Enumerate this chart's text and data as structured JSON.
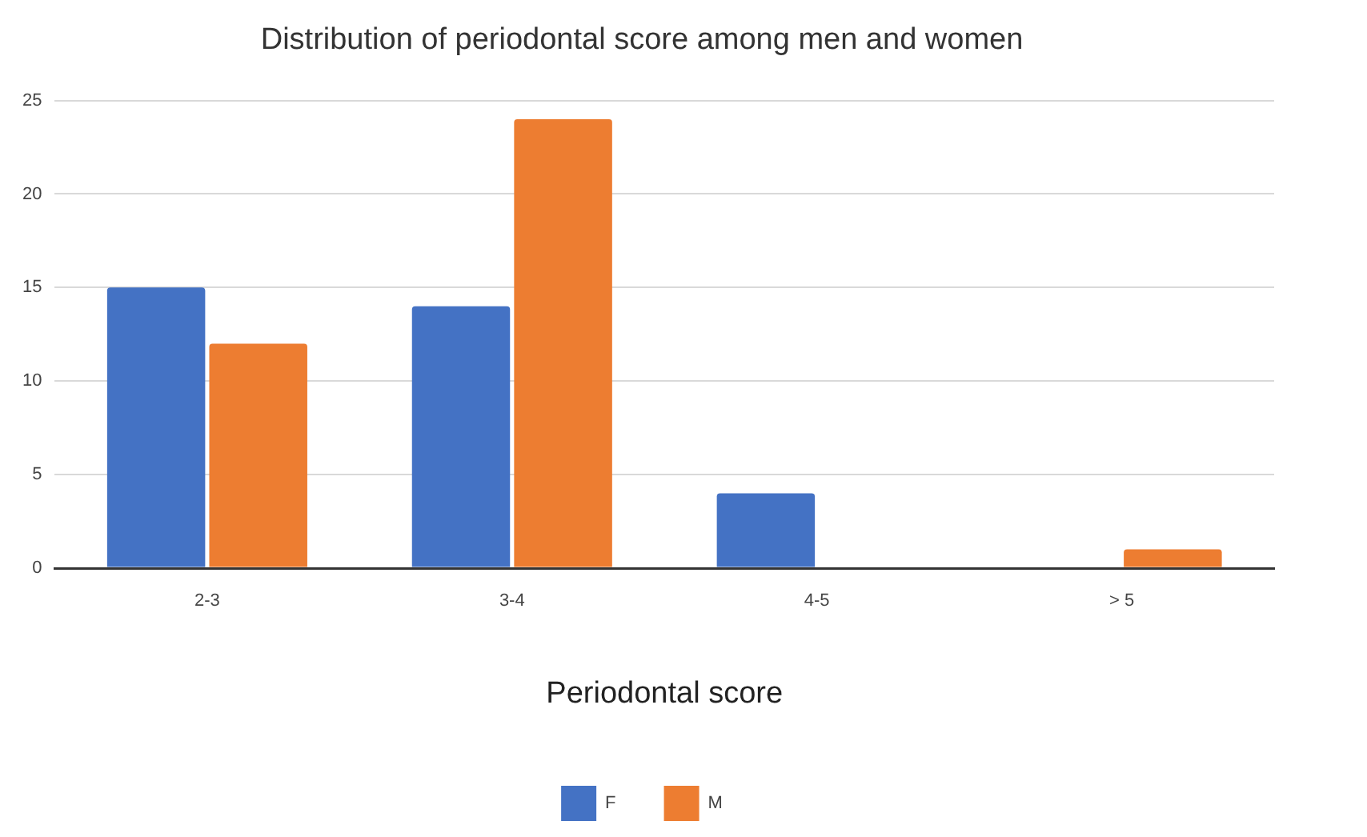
{
  "chart_data": {
    "type": "bar",
    "title": "Distribution of periodontal score among men and women",
    "xlabel": "Periodontal score",
    "categories": [
      "2-3",
      "3-4",
      "4-5",
      "> 5"
    ],
    "series": [
      {
        "name": "F",
        "color": "#4472c4",
        "values": [
          15,
          14,
          4,
          0
        ]
      },
      {
        "name": "M",
        "color": "#ed7d31",
        "values": [
          12,
          24,
          0,
          1
        ]
      }
    ],
    "ylim": [
      0,
      25
    ],
    "yticks": [
      0,
      5,
      10,
      15,
      20,
      25
    ],
    "grid": "y",
    "legend": "bottom"
  }
}
